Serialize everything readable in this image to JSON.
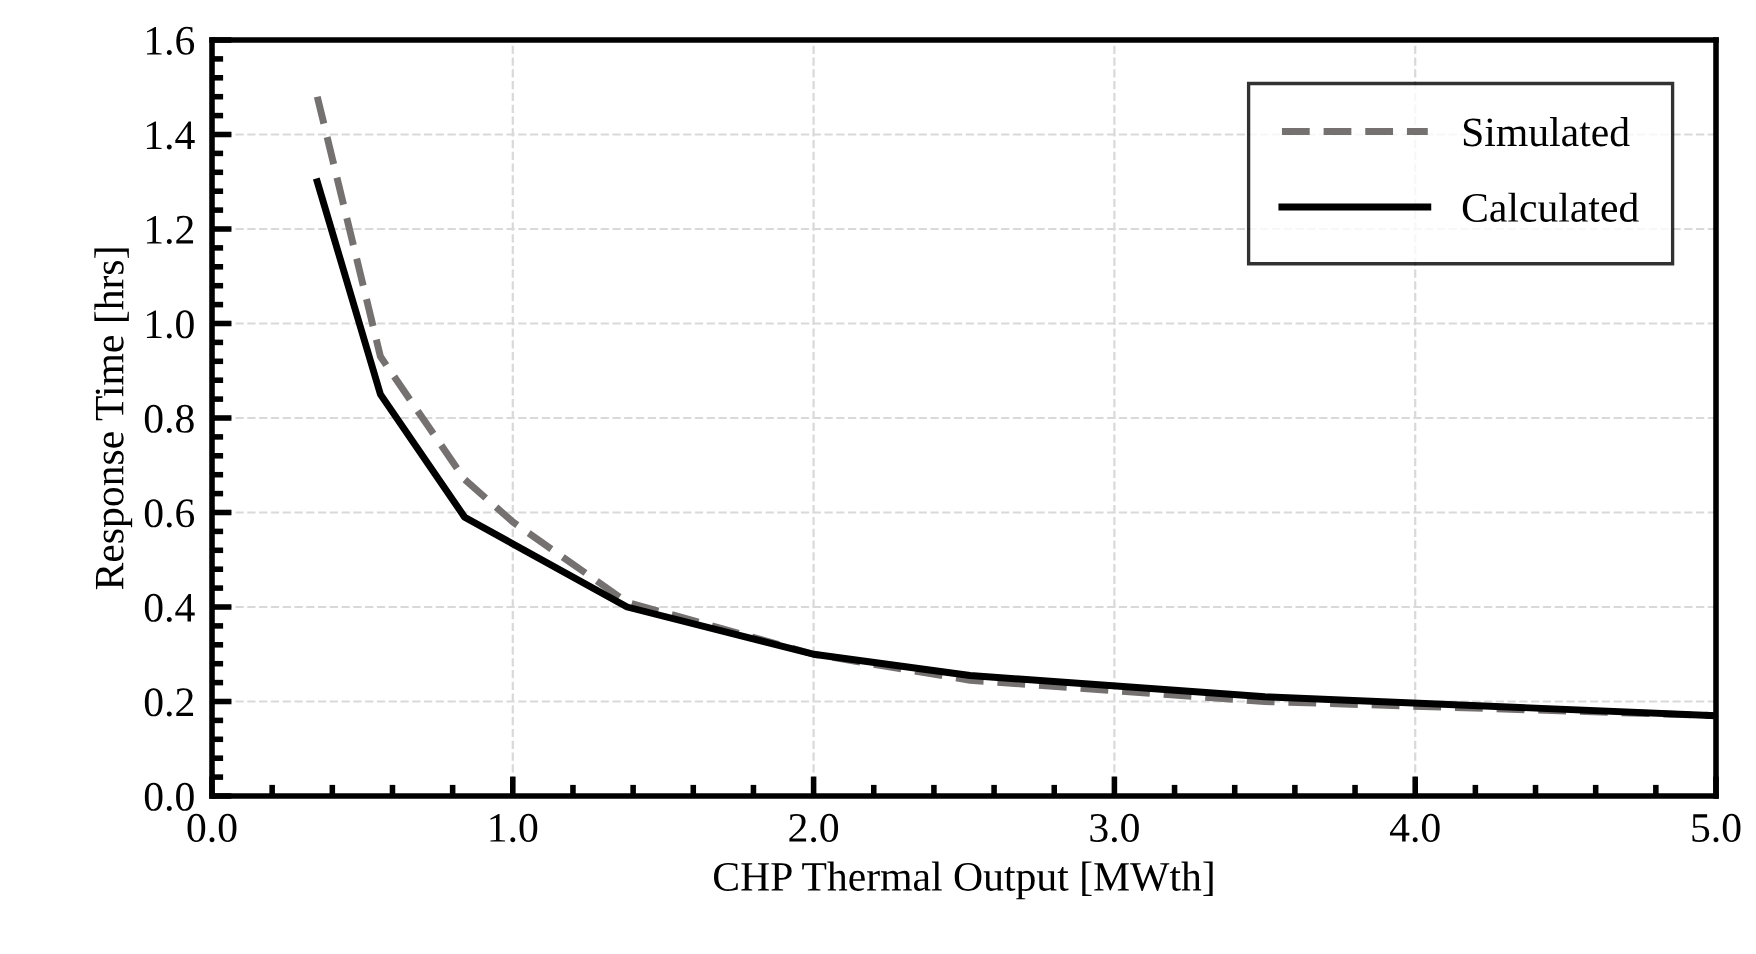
{
  "chart_data": {
    "type": "line",
    "xlabel": "CHP Thermal Output [MWth]",
    "ylabel": "Response Time [hrs]",
    "series": [
      {
        "name": "Simulated",
        "color": "#767171",
        "line_style": "dashed",
        "x": [
          0.35,
          0.56,
          0.84,
          1.0,
          1.38,
          2.0,
          2.52,
          3.5,
          5.0
        ],
        "values": [
          1.48,
          0.93,
          0.67,
          0.58,
          0.41,
          0.3,
          0.245,
          0.2,
          0.17
        ]
      },
      {
        "name": "Calculated",
        "color": "#000000",
        "line_style": "solid",
        "x": [
          0.35,
          0.56,
          0.84,
          1.38,
          2.0,
          2.52,
          3.5,
          5.0
        ],
        "values": [
          1.3,
          0.85,
          0.59,
          0.4,
          0.3,
          0.255,
          0.21,
          0.17
        ]
      }
    ],
    "xlim": [
      0,
      5
    ],
    "xticks": [
      {
        "value": 0,
        "label": "0.0"
      },
      {
        "value": 1,
        "label": "1.0"
      },
      {
        "value": 2,
        "label": "2.0"
      },
      {
        "value": 3,
        "label": "3.0"
      },
      {
        "value": 4,
        "label": "4.0"
      },
      {
        "value": 5,
        "label": "5.0"
      }
    ],
    "ylim": [
      0,
      1.6
    ],
    "yticks": [
      {
        "value": 0,
        "label": "0.0"
      },
      {
        "value": 0.2,
        "label": "0.2"
      },
      {
        "value": 0.4,
        "label": "0.4"
      },
      {
        "value": 0.6,
        "label": "0.6"
      },
      {
        "value": 0.8,
        "label": "0.8"
      },
      {
        "value": 1.0,
        "label": "1.0"
      },
      {
        "value": 1.2,
        "label": "1.2"
      },
      {
        "value": 1.4,
        "label": "1.4"
      },
      {
        "value": 1.6,
        "label": "1.6"
      }
    ],
    "grid": true,
    "legend": "top right",
    "marker": "none"
  }
}
